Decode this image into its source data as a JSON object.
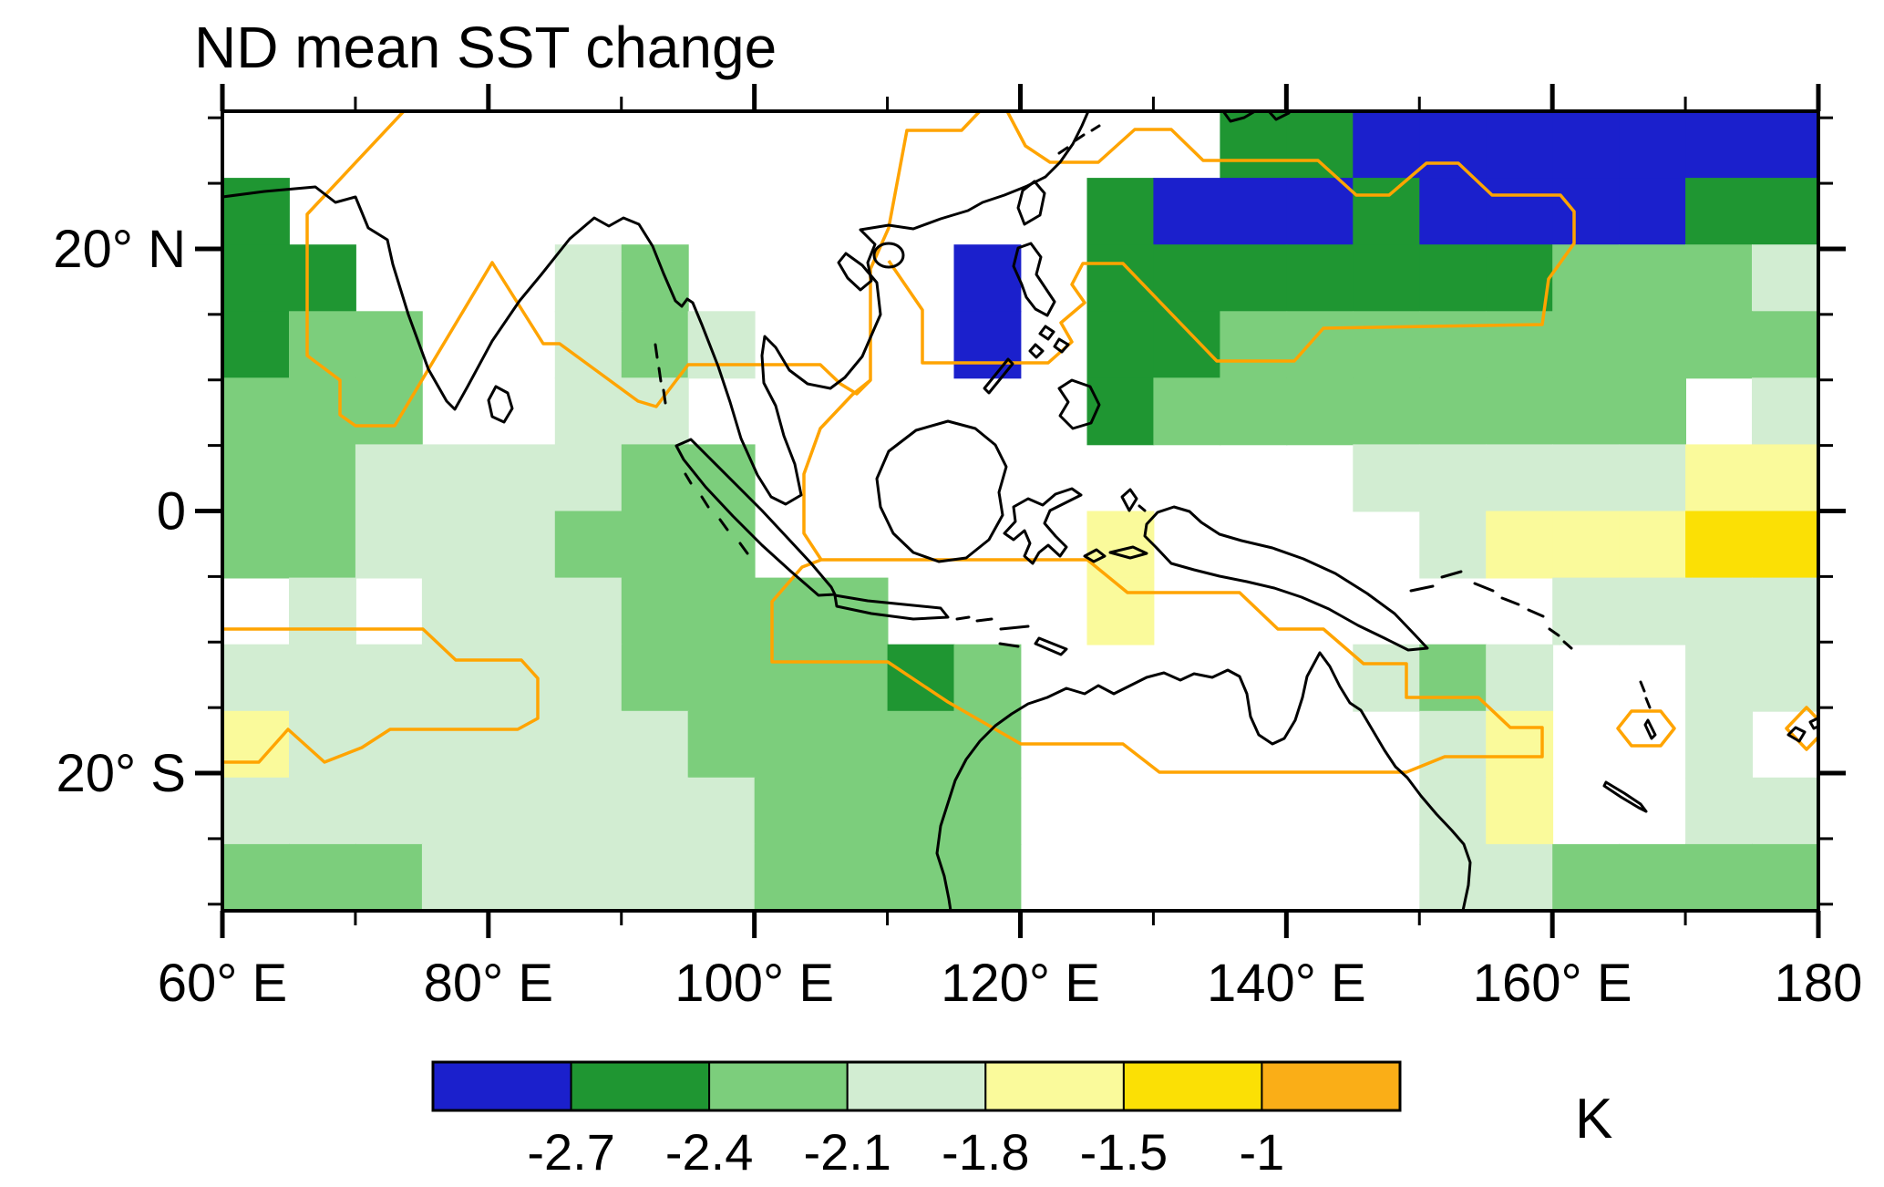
{
  "title": "ND mean SST change",
  "axes": {
    "x": {
      "tick_labels": [
        "60° E",
        "80° E",
        "100° E",
        "120° E",
        "140° E",
        "160° E",
        "180"
      ],
      "tick_lons": [
        60,
        80,
        100,
        120,
        140,
        160,
        180
      ],
      "minor_step_deg": 10,
      "range_deg": [
        60,
        180
      ]
    },
    "y": {
      "tick_labels": [
        "20° N",
        "0",
        "20° S"
      ],
      "tick_lats": [
        20,
        0,
        -20
      ],
      "minor_step_deg": 5,
      "range_deg": [
        -30.5,
        30.5
      ]
    }
  },
  "colorbar": {
    "unit_label": "K",
    "boundary_labels": [
      "-2.7",
      "-2.4",
      "-2.1",
      "-1.8",
      "-1.5",
      "-1"
    ],
    "colors": [
      "#1B20CC",
      "#1F9632",
      "#7CCE7C",
      "#D2EDD2",
      "#FAFA9B",
      "#FBE005",
      "#FAAE17"
    ]
  },
  "chart_data": {
    "type": "heatmap",
    "title": "ND mean SST change",
    "unit": "K",
    "lon_range": [
      60,
      180
    ],
    "lat_range": [
      -30.5,
      30.5
    ],
    "cell_deg": 5,
    "legend_position": "bottom",
    "bins": [
      {
        "label": "no data / land",
        "color": "#FFFFFF"
      },
      {
        "label": "< -2.7",
        "color": "#1B20CC"
      },
      {
        "label": "-2.7 to -2.4",
        "color": "#1F9632"
      },
      {
        "label": "-2.4 to -2.1",
        "color": "#7CCE7C"
      },
      {
        "label": "-2.1 to -1.8",
        "color": "#D2EDD2"
      },
      {
        "label": "-1.8 to -1.5",
        "color": "#FAFA9B"
      },
      {
        "label": "-1.5 to -1",
        "color": "#FBE005"
      },
      {
        "label": "> -1",
        "color": "#FAAE17"
      }
    ],
    "grid_rows_north_to_south": [
      [
        0,
        0,
        0,
        0,
        0,
        0,
        0,
        0,
        0,
        0,
        0,
        0,
        0,
        0,
        0,
        2,
        2,
        1,
        1,
        1,
        1,
        1,
        1,
        1
      ],
      [
        2,
        0,
        0,
        0,
        0,
        0,
        0,
        0,
        0,
        0,
        0,
        0,
        0,
        2,
        1,
        1,
        1,
        2,
        1,
        1,
        1,
        1,
        2,
        2
      ],
      [
        2,
        2,
        0,
        0,
        0,
        4,
        3,
        0,
        0,
        0,
        0,
        1,
        0,
        2,
        2,
        2,
        2,
        2,
        2,
        2,
        3,
        3,
        3,
        4
      ],
      [
        2,
        3,
        3,
        0,
        0,
        4,
        3,
        4,
        0,
        0,
        0,
        1,
        0,
        2,
        2,
        3,
        3,
        3,
        3,
        3,
        3,
        3,
        3,
        3
      ],
      [
        3,
        3,
        3,
        0,
        0,
        4,
        4,
        0,
        0,
        0,
        0,
        0,
        0,
        2,
        3,
        3,
        3,
        3,
        3,
        3,
        3,
        3,
        0,
        4
      ],
      [
        3,
        3,
        4,
        4,
        4,
        4,
        3,
        3,
        0,
        0,
        0,
        0,
        0,
        0,
        0,
        0,
        0,
        4,
        4,
        4,
        4,
        4,
        5,
        5
      ],
      [
        3,
        3,
        4,
        4,
        4,
        3,
        3,
        3,
        0,
        0,
        0,
        0,
        0,
        5,
        0,
        0,
        0,
        0,
        4,
        5,
        5,
        5,
        6,
        6
      ],
      [
        0,
        4,
        0,
        4,
        4,
        4,
        3,
        3,
        3,
        3,
        0,
        0,
        0,
        5,
        0,
        0,
        0,
        0,
        0,
        0,
        4,
        4,
        4,
        4
      ],
      [
        4,
        4,
        4,
        4,
        4,
        4,
        3,
        3,
        3,
        3,
        2,
        3,
        0,
        0,
        0,
        0,
        0,
        4,
        3,
        4,
        0,
        0,
        4,
        4
      ],
      [
        5,
        4,
        4,
        4,
        4,
        4,
        4,
        3,
        3,
        3,
        3,
        3,
        0,
        0,
        0,
        0,
        0,
        0,
        4,
        5,
        0,
        0,
        4,
        0
      ],
      [
        4,
        4,
        4,
        4,
        4,
        4,
        4,
        4,
        3,
        3,
        3,
        3,
        0,
        0,
        0,
        0,
        0,
        0,
        4,
        5,
        0,
        0,
        4,
        4
      ],
      [
        3,
        3,
        3,
        4,
        4,
        4,
        4,
        4,
        3,
        3,
        3,
        3,
        0,
        0,
        0,
        0,
        0,
        0,
        4,
        4,
        3,
        3,
        3,
        3
      ]
    ]
  },
  "overlays": {
    "significance_color": "#FFA400",
    "significance_paths": [
      "M443,122 L337,235 L337,390 L373,417 L373,455 L390,467 L433,467 L540,288 L596,377 L614,377 L700,440 L720,446 L755,400 L900,400 L922,421 L940,432 L955,417 L955,295 L975,250 L995,143 L1055,143 L1075,122",
      "M975,286 L1012,340 L1012,398 L1150,398 L1176,375 L1164,354 L1190,332 L1176,312 L1188,289 L1232,289 L1335,396 L1420,396 L1452,360 L1692,356 L1699,306 L1727,267 L1727,232 L1712,214 L1637,214 L1600,179 L1565,179 L1524,214 L1488,214 L1446,176 L1320,176 L1285,142 L1245,142 L1205,178 L1152,178 L1125,160 L1105,122",
      "M955,417 L935,433 L900,470 L882,520 L882,585 L901,614 L1193,614 L1237,650 L1360,650 L1402,690 L1452,690 L1496,728 L1543,728 L1543,765 L1622,765 L1657,798 L1692,798 L1692,830 L1585,830 L1543,847 L1272,847 L1232,816 L1120,816 L1040,770 L974,726 L847,726 L847,660 L880,622 L901,614",
      "M244,690 L464,690 L500,724 L572,724 L590,744 L590,788 L568,800 L428,800 L397,820 L356,836 L316,800 L284,836 L244,836",
      "M1775,799 L1790,780 L1822,780 L1837,799 L1822,818 L1790,818 Z",
      "M1982,776 L2004,799 L1982,822 L1960,799 Z"
    ]
  }
}
